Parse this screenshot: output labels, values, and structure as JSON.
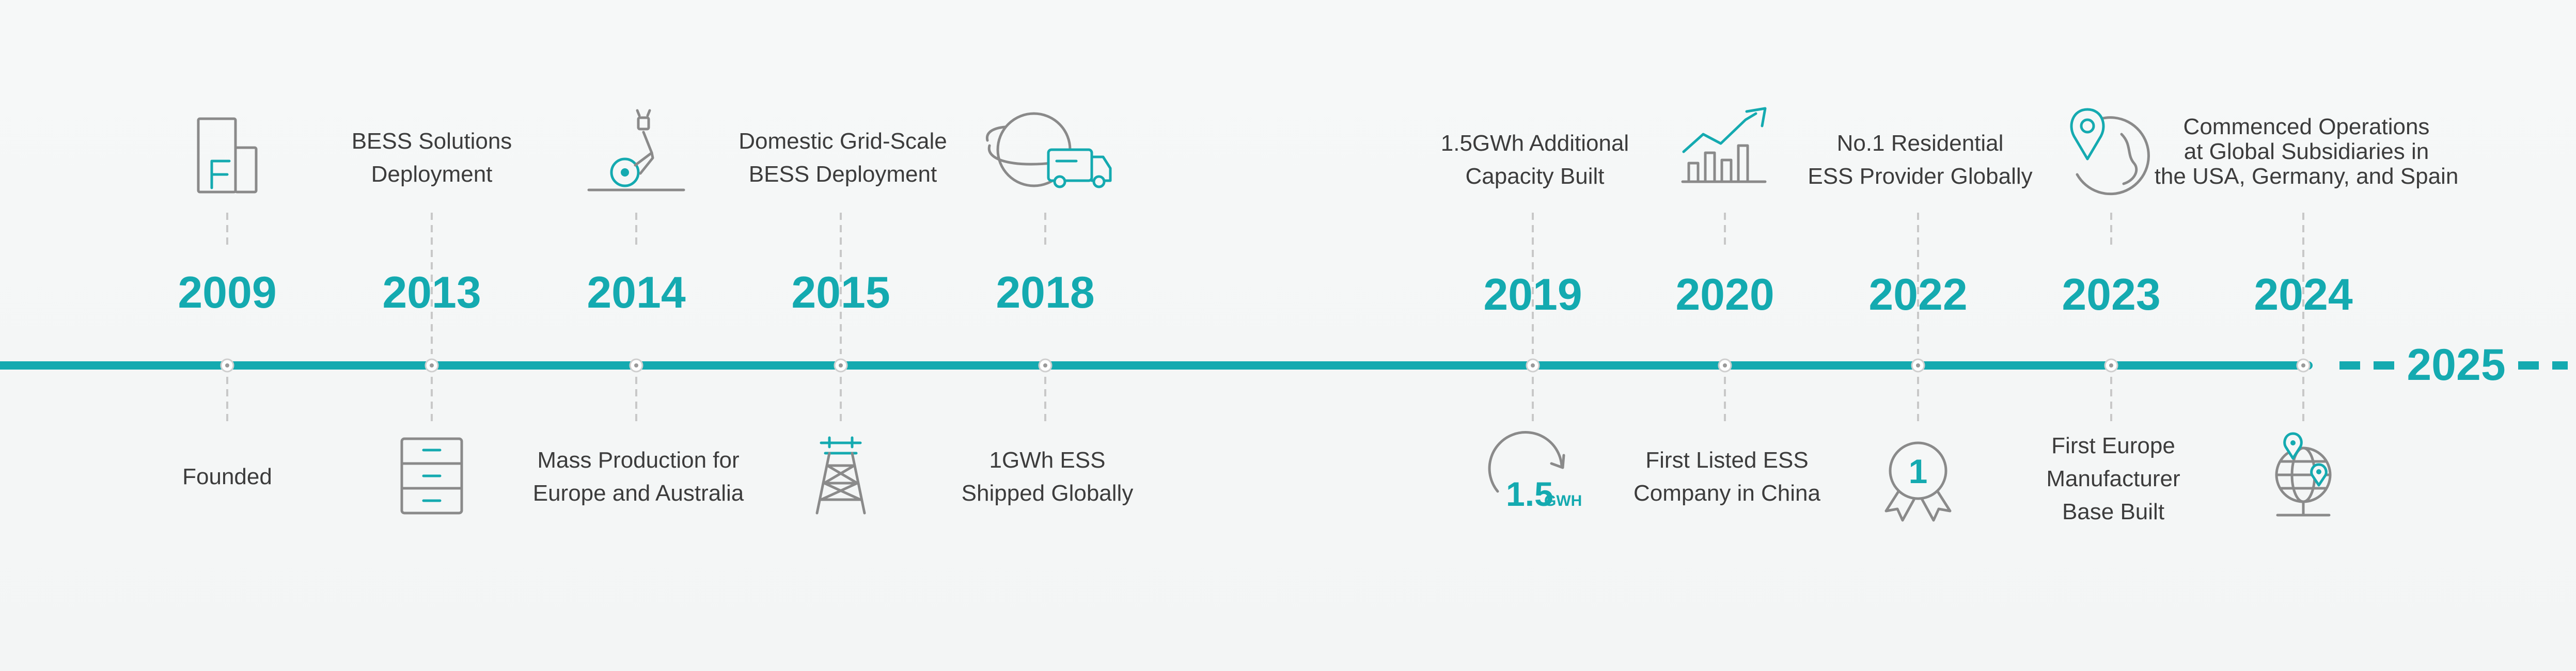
{
  "colors": {
    "accent": "#14aab0",
    "background": "#f5f7f7",
    "text": "#3c3c3c",
    "icon": "#8a8a8a"
  },
  "milestones": [
    {
      "year": "2009",
      "lines": [
        "Founded"
      ],
      "text_pos": "below",
      "icon": "building-icon"
    },
    {
      "year": "2013",
      "lines": [
        "BESS Solutions",
        "Deployment"
      ],
      "text_pos": "above",
      "icon": "cabinet-icon"
    },
    {
      "year": "2014",
      "lines": [
        "Mass Production for",
        "Europe and Australia"
      ],
      "text_pos": "below",
      "icon": "robot-arm-icon"
    },
    {
      "year": "2015",
      "lines": [
        "Domestic Grid-Scale",
        "BESS Deployment"
      ],
      "text_pos": "above",
      "icon": "transmission-tower-icon"
    },
    {
      "year": "2018",
      "lines": [
        "1GWh ESS",
        "Shipped Globally"
      ],
      "text_pos": "below",
      "icon": "globe-truck-icon"
    },
    {
      "year": "2019",
      "lines": [
        "1.5GWh Additional",
        "Capacity Built"
      ],
      "text_pos": "above",
      "icon": "capacity-icon"
    },
    {
      "year": "2020",
      "lines": [
        "First Listed ESS",
        "Company in China"
      ],
      "text_pos": "below",
      "icon": "growth-chart-icon"
    },
    {
      "year": "2022",
      "lines": [
        "No.1 Residential",
        "ESS Provider Globally"
      ],
      "text_pos": "above",
      "icon": "medal-icon"
    },
    {
      "year": "2023",
      "lines": [
        "First Europe",
        "Manufacturer",
        "Base Built"
      ],
      "text_pos": "below",
      "icon": "location-globe-icon"
    },
    {
      "year": "2024",
      "lines": [
        "Commenced Operations",
        "at Global Subsidiaries in",
        "the USA, Germany, and Spain"
      ],
      "text_pos": "above",
      "icon": "world-pins-icon"
    }
  ],
  "future_year": "2025",
  "capacity_icon": {
    "number": "1.5",
    "unit": "GWH"
  },
  "medal_icon": {
    "number": "1"
  }
}
